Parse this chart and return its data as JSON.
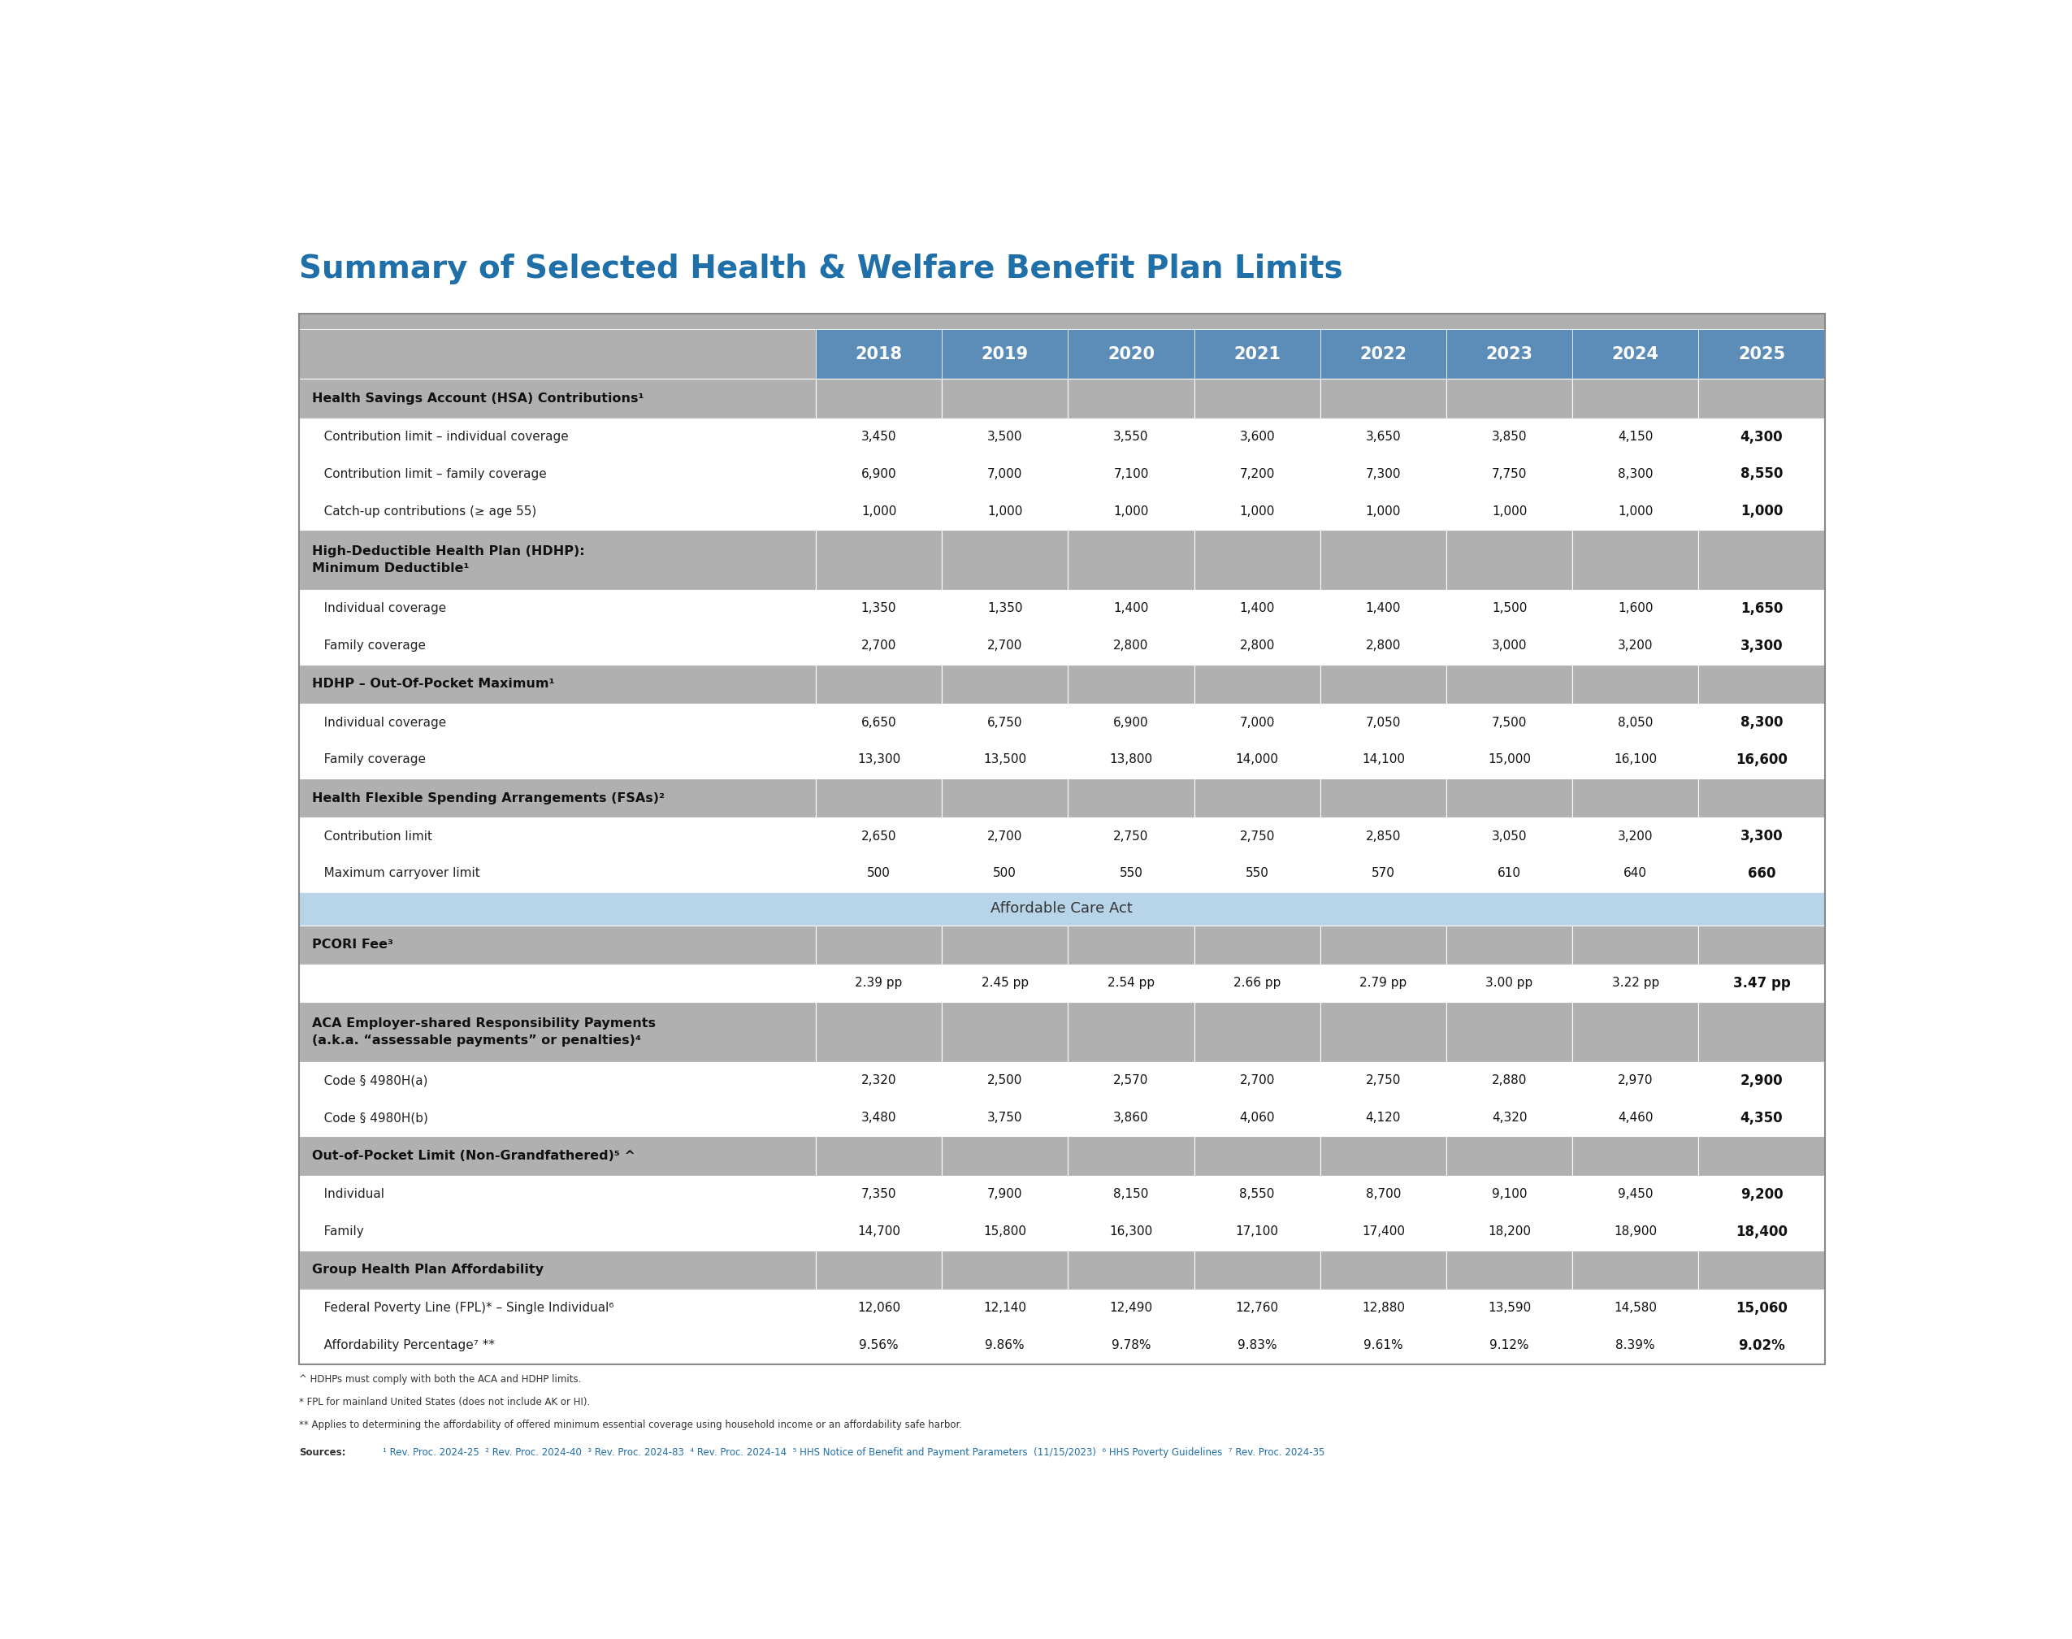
{
  "title": "Summary of Selected Health & Welfare Benefit Plan Limits",
  "title_color": "#1F6FA8",
  "columns": [
    "",
    "2018",
    "2019",
    "2020",
    "2021",
    "2022",
    "2023",
    "2024",
    "2025"
  ],
  "header_bg": "#5B8DB8",
  "header_text_color": "#FFFFFF",
  "section_bg": "#AAAAAA",
  "aca_banner_bg": "#B8D4E8",
  "rows": [
    {
      "type": "section",
      "label": "Health Savings Account (HSA) Contributions¹",
      "values": [
        "",
        "",
        "",
        "",
        "",
        "",
        "",
        ""
      ]
    },
    {
      "type": "data",
      "label": "   Contribution limit – individual coverage",
      "values": [
        "3,450",
        "3,500",
        "3,550",
        "3,600",
        "3,650",
        "3,850",
        "4,150",
        "4,300"
      ]
    },
    {
      "type": "data",
      "label": "   Contribution limit – family coverage",
      "values": [
        "6,900",
        "7,000",
        "7,100",
        "7,200",
        "7,300",
        "7,750",
        "8,300",
        "8,550"
      ]
    },
    {
      "type": "data",
      "label": "   Catch-up contributions (≥ age 55)",
      "values": [
        "1,000",
        "1,000",
        "1,000",
        "1,000",
        "1,000",
        "1,000",
        "1,000",
        "1,000"
      ]
    },
    {
      "type": "section",
      "label": "High-Deductible Health Plan (HDHP):\nMinimum Deductible¹",
      "values": [
        "",
        "",
        "",
        "",
        "",
        "",
        "",
        ""
      ]
    },
    {
      "type": "data",
      "label": "   Individual coverage",
      "values": [
        "1,350",
        "1,350",
        "1,400",
        "1,400",
        "1,400",
        "1,500",
        "1,600",
        "1,650"
      ]
    },
    {
      "type": "data",
      "label": "   Family coverage",
      "values": [
        "2,700",
        "2,700",
        "2,800",
        "2,800",
        "2,800",
        "3,000",
        "3,200",
        "3,300"
      ]
    },
    {
      "type": "section",
      "label": "HDHP – Out-Of-Pocket Maximum¹",
      "values": [
        "",
        "",
        "",
        "",
        "",
        "",
        "",
        ""
      ]
    },
    {
      "type": "data",
      "label": "   Individual coverage",
      "values": [
        "6,650",
        "6,750",
        "6,900",
        "7,000",
        "7,050",
        "7,500",
        "8,050",
        "8,300"
      ]
    },
    {
      "type": "data",
      "label": "   Family coverage",
      "values": [
        "13,300",
        "13,500",
        "13,800",
        "14,000",
        "14,100",
        "15,000",
        "16,100",
        "16,600"
      ]
    },
    {
      "type": "section",
      "label": "Health Flexible Spending Arrangements (FSAs)²",
      "values": [
        "",
        "",
        "",
        "",
        "",
        "",
        "",
        ""
      ]
    },
    {
      "type": "data",
      "label": "   Contribution limit",
      "values": [
        "2,650",
        "2,700",
        "2,750",
        "2,750",
        "2,850",
        "3,050",
        "3,200",
        "3,300"
      ]
    },
    {
      "type": "data",
      "label": "   Maximum carryover limit",
      "values": [
        "500",
        "500",
        "550",
        "550",
        "570",
        "610",
        "640",
        "660"
      ]
    },
    {
      "type": "aca_banner",
      "label": "Affordable Care Act",
      "values": [
        "",
        "",
        "",
        "",
        "",
        "",
        "",
        ""
      ]
    },
    {
      "type": "section",
      "label": "PCORI Fee³",
      "values": [
        "",
        "",
        "",
        "",
        "",
        "",
        "",
        ""
      ]
    },
    {
      "type": "data",
      "label": "",
      "values": [
        "2.39 pp",
        "2.45 pp",
        "2.54 pp",
        "2.66 pp",
        "2.79 pp",
        "3.00 pp",
        "3.22 pp",
        "3.47 pp"
      ]
    },
    {
      "type": "section",
      "label": "ACA Employer-shared Responsibility Payments\n(a.k.a. “assessable payments” or penalties)⁴",
      "values": [
        "",
        "",
        "",
        "",
        "",
        "",
        "",
        ""
      ]
    },
    {
      "type": "data",
      "label": "   Code § 4980H(a)",
      "values": [
        "2,320",
        "2,500",
        "2,570",
        "2,700",
        "2,750",
        "2,880",
        "2,970",
        "2,900"
      ]
    },
    {
      "type": "data",
      "label": "   Code § 4980H(b)",
      "values": [
        "3,480",
        "3,750",
        "3,860",
        "4,060",
        "4,120",
        "4,320",
        "4,460",
        "4,350"
      ]
    },
    {
      "type": "section",
      "label": "Out-of-Pocket Limit (Non-Grandfathered)⁵ ^",
      "values": [
        "",
        "",
        "",
        "",
        "",
        "",
        "",
        ""
      ]
    },
    {
      "type": "data",
      "label": "   Individual",
      "values": [
        "7,350",
        "7,900",
        "8,150",
        "8,550",
        "8,700",
        "9,100",
        "9,450",
        "9,200"
      ]
    },
    {
      "type": "data",
      "label": "   Family",
      "values": [
        "14,700",
        "15,800",
        "16,300",
        "17,100",
        "17,400",
        "18,200",
        "18,900",
        "18,400"
      ]
    },
    {
      "type": "section",
      "label": "Group Health Plan Affordability",
      "values": [
        "",
        "",
        "",
        "",
        "",
        "",
        "",
        ""
      ]
    },
    {
      "type": "data",
      "label": "   Federal Poverty Line (FPL)* – Single Individual⁶",
      "values": [
        "12,060",
        "12,140",
        "12,490",
        "12,760",
        "12,880",
        "13,590",
        "14,580",
        "15,060"
      ]
    },
    {
      "type": "data",
      "label": "   Affordability Percentage⁷ **",
      "values": [
        "9.56%",
        "9.86%",
        "9.78%",
        "9.83%",
        "9.61%",
        "9.12%",
        "8.39%",
        "9.02%"
      ]
    }
  ],
  "footnotes": [
    "^ HDHPs must comply with both the ACA and HDHP limits.",
    "* FPL for mainland United States (does not include AK or HI).",
    "** Applies to determining the affordability of offered minimum essential coverage using household income or an affordability safe harbor."
  ],
  "sources_text": "¹ Rev. Proc. 2024-25  ² Rev. Proc. 2024-40  ³ Rev. Proc. 2024-83  ⁴ Rev. Proc. 2024-14  ⁵ HHS Notice of Benefit and Payment Parameters  (11/15/2023)  ⁶ HHS Poverty Guidelines  ⁷ Rev. Proc. 2024-35"
}
